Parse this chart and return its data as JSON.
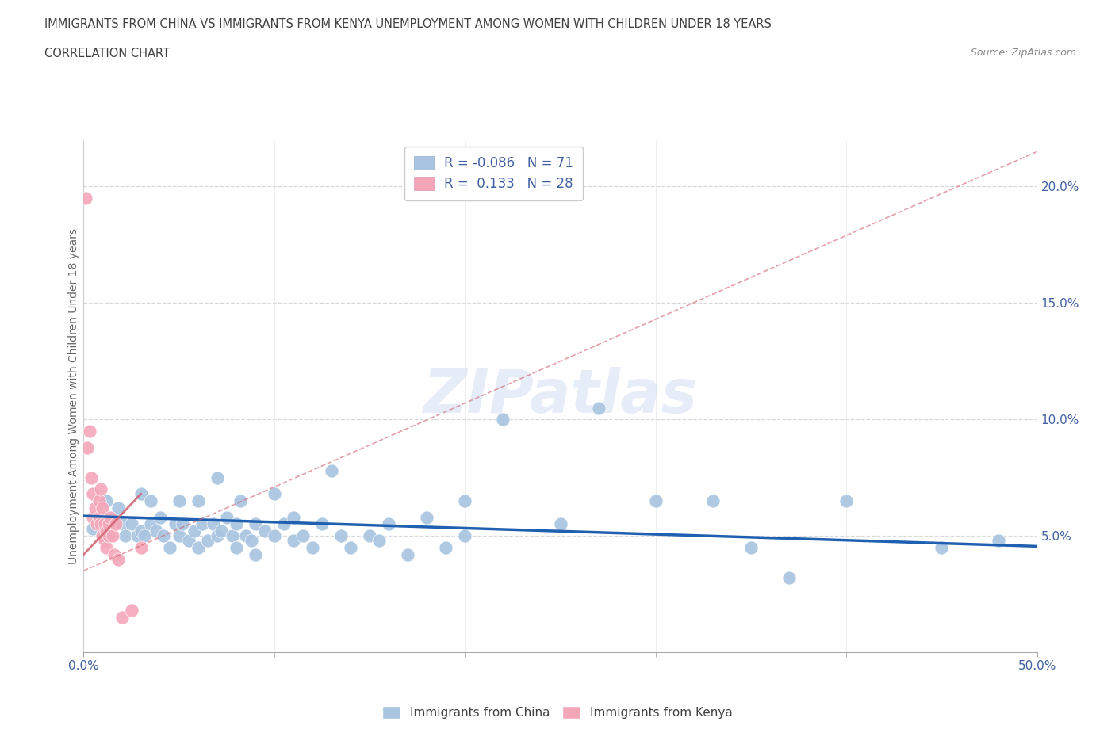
{
  "title_line1": "IMMIGRANTS FROM CHINA VS IMMIGRANTS FROM KENYA UNEMPLOYMENT AMONG WOMEN WITH CHILDREN UNDER 18 YEARS",
  "title_line2": "CORRELATION CHART",
  "source": "Source: ZipAtlas.com",
  "ylabel": "Unemployment Among Women with Children Under 18 years",
  "watermark": "ZIPatlas",
  "china_R": -0.086,
  "china_N": 71,
  "kenya_R": 0.133,
  "kenya_N": 28,
  "china_color": "#a8c4e0",
  "kenya_color": "#f4a7b9",
  "china_line_color": "#2060b0",
  "kenya_line_color": "#d06070",
  "china_scatter": [
    [
      0.5,
      5.3
    ],
    [
      1.0,
      5.0
    ],
    [
      1.2,
      6.5
    ],
    [
      1.5,
      5.8
    ],
    [
      1.8,
      6.2
    ],
    [
      2.0,
      5.5
    ],
    [
      2.2,
      5.0
    ],
    [
      2.5,
      5.5
    ],
    [
      2.8,
      5.0
    ],
    [
      3.0,
      6.8
    ],
    [
      3.0,
      5.2
    ],
    [
      3.2,
      5.0
    ],
    [
      3.5,
      6.5
    ],
    [
      3.5,
      5.5
    ],
    [
      3.8,
      5.2
    ],
    [
      4.0,
      5.8
    ],
    [
      4.2,
      5.0
    ],
    [
      4.5,
      4.5
    ],
    [
      4.8,
      5.5
    ],
    [
      5.0,
      5.0
    ],
    [
      5.0,
      6.5
    ],
    [
      5.2,
      5.5
    ],
    [
      5.5,
      4.8
    ],
    [
      5.8,
      5.2
    ],
    [
      6.0,
      4.5
    ],
    [
      6.0,
      6.5
    ],
    [
      6.2,
      5.5
    ],
    [
      6.5,
      4.8
    ],
    [
      6.8,
      5.5
    ],
    [
      7.0,
      5.0
    ],
    [
      7.0,
      7.5
    ],
    [
      7.2,
      5.2
    ],
    [
      7.5,
      5.8
    ],
    [
      7.8,
      5.0
    ],
    [
      8.0,
      4.5
    ],
    [
      8.0,
      5.5
    ],
    [
      8.2,
      6.5
    ],
    [
      8.5,
      5.0
    ],
    [
      8.8,
      4.8
    ],
    [
      9.0,
      5.5
    ],
    [
      9.0,
      4.2
    ],
    [
      9.5,
      5.2
    ],
    [
      10.0,
      5.0
    ],
    [
      10.0,
      6.8
    ],
    [
      10.5,
      5.5
    ],
    [
      11.0,
      4.8
    ],
    [
      11.0,
      5.8
    ],
    [
      11.5,
      5.0
    ],
    [
      12.0,
      4.5
    ],
    [
      12.5,
      5.5
    ],
    [
      13.0,
      7.8
    ],
    [
      13.5,
      5.0
    ],
    [
      14.0,
      4.5
    ],
    [
      15.0,
      5.0
    ],
    [
      15.5,
      4.8
    ],
    [
      16.0,
      5.5
    ],
    [
      17.0,
      4.2
    ],
    [
      18.0,
      5.8
    ],
    [
      19.0,
      4.5
    ],
    [
      20.0,
      5.0
    ],
    [
      20.0,
      6.5
    ],
    [
      22.0,
      10.0
    ],
    [
      25.0,
      5.5
    ],
    [
      27.0,
      10.5
    ],
    [
      30.0,
      6.5
    ],
    [
      33.0,
      6.5
    ],
    [
      35.0,
      4.5
    ],
    [
      37.0,
      3.2
    ],
    [
      40.0,
      6.5
    ],
    [
      45.0,
      4.5
    ],
    [
      48.0,
      4.8
    ]
  ],
  "kenya_scatter": [
    [
      0.1,
      19.5
    ],
    [
      0.2,
      8.8
    ],
    [
      0.3,
      9.5
    ],
    [
      0.4,
      7.5
    ],
    [
      0.5,
      6.8
    ],
    [
      0.5,
      5.8
    ],
    [
      0.6,
      6.2
    ],
    [
      0.7,
      5.5
    ],
    [
      0.8,
      6.5
    ],
    [
      0.8,
      5.8
    ],
    [
      0.9,
      7.0
    ],
    [
      0.9,
      5.5
    ],
    [
      1.0,
      6.2
    ],
    [
      1.0,
      5.0
    ],
    [
      1.1,
      5.5
    ],
    [
      1.1,
      4.8
    ],
    [
      1.2,
      5.2
    ],
    [
      1.2,
      4.5
    ],
    [
      1.3,
      5.5
    ],
    [
      1.3,
      5.0
    ],
    [
      1.4,
      5.8
    ],
    [
      1.5,
      5.0
    ],
    [
      1.6,
      4.2
    ],
    [
      1.7,
      5.5
    ],
    [
      1.8,
      4.0
    ],
    [
      2.0,
      1.5
    ],
    [
      2.5,
      1.8
    ],
    [
      3.0,
      4.5
    ]
  ],
  "xlim": [
    0,
    50
  ],
  "ylim": [
    0,
    22
  ],
  "xtick_positions": [
    0,
    50
  ],
  "xtick_labels": [
    "0.0%",
    "50.0%"
  ],
  "xtick_minor_positions": [
    10,
    20,
    30,
    40
  ],
  "yticks_right": [
    5,
    10,
    15,
    20
  ],
  "ytick_right_labels": [
    "5.0%",
    "10.0%",
    "15.0%",
    "20.0%"
  ],
  "grid_color": "#d8d8d8",
  "background_color": "#ffffff",
  "title_color": "#404040",
  "axis_color": "#4060a0",
  "legend_china_label": "Immigrants from China",
  "legend_kenya_label": "Immigrants from Kenya",
  "china_line_x": [
    0,
    50
  ],
  "china_line_y": [
    5.85,
    4.55
  ],
  "kenya_line_x": [
    0.0,
    3.0
  ],
  "kenya_line_y": [
    4.2,
    6.8
  ]
}
